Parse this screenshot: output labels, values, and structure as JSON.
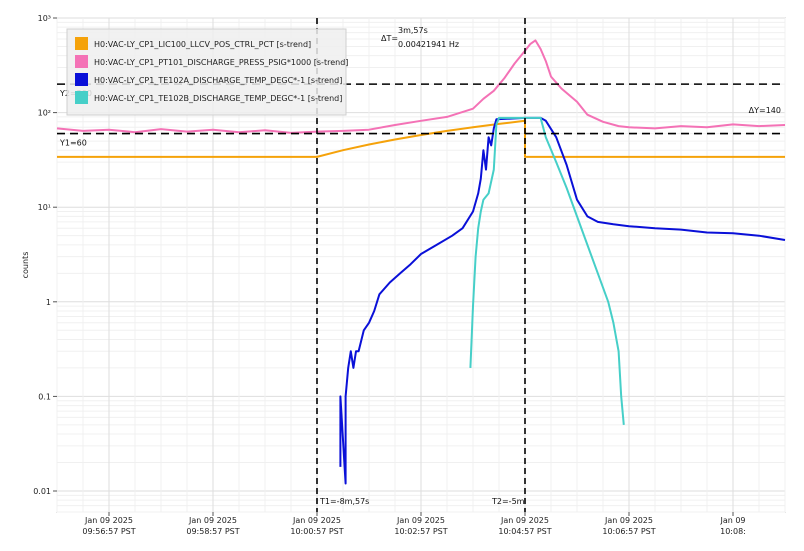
{
  "chart_data": {
    "type": "line",
    "ylabel": "counts",
    "yscale": "log",
    "ylim": [
      0.006,
      1000
    ],
    "xlim_minutes": [
      -13.0,
      1.0
    ],
    "x_ticks": [
      {
        "m": -12,
        "date": "Jan 09 2025",
        "time": "09:56:57 PST"
      },
      {
        "m": -10,
        "date": "Jan 09 2025",
        "time": "09:58:57 PST"
      },
      {
        "m": -8,
        "date": "Jan 09 2025",
        "time": "10:00:57 PST"
      },
      {
        "m": -6,
        "date": "Jan 09 2025",
        "time": "10:02:57 PST"
      },
      {
        "m": -4,
        "date": "Jan 09 2025",
        "time": "10:04:57 PST"
      },
      {
        "m": -2,
        "date": "Jan 09 2025",
        "time": "10:06:57 PST"
      },
      {
        "m": 0,
        "date": "Jan 09",
        "time": "10:08:"
      }
    ],
    "y_ticks": [
      {
        "v": 0.01,
        "label": "0.01"
      },
      {
        "v": 0.1,
        "label": "0.1"
      },
      {
        "v": 1,
        "label": "1"
      },
      {
        "v": 10,
        "label": "10¹"
      },
      {
        "v": 100,
        "label": "10²"
      },
      {
        "v": 1000,
        "label": "10³"
      }
    ],
    "legend_position": "top-left",
    "series": [
      {
        "name": "H0:VAC-LY_CP1_LIC100_LLCV_POS_CTRL_PCT [s-trend]",
        "color": "#f5a20a",
        "points": [
          [
            -13,
            34
          ],
          [
            -8.0,
            34
          ],
          [
            -7.5,
            40
          ],
          [
            -7,
            46
          ],
          [
            -6.5,
            52
          ],
          [
            -6,
            58
          ],
          [
            -5.5,
            64
          ],
          [
            -5,
            70
          ],
          [
            -4.5,
            76
          ],
          [
            -4,
            82
          ],
          [
            -4.0,
            34
          ],
          [
            -3,
            34
          ],
          [
            -2,
            34
          ],
          [
            -1,
            34
          ],
          [
            0,
            34
          ],
          [
            1,
            34
          ]
        ]
      },
      {
        "name": "H0:VAC-LY_CP1_PT101_DISCHARGE_PRESS_PSIG*1000 [s-trend]",
        "color": "#f472b6",
        "points": [
          [
            -13,
            68
          ],
          [
            -12.5,
            64
          ],
          [
            -12,
            66
          ],
          [
            -11.5,
            62
          ],
          [
            -11,
            67
          ],
          [
            -10.5,
            63
          ],
          [
            -10,
            66
          ],
          [
            -9.5,
            62
          ],
          [
            -9,
            65
          ],
          [
            -8.5,
            61
          ],
          [
            -8,
            63
          ],
          [
            -7.5,
            64
          ],
          [
            -7,
            66
          ],
          [
            -6.5,
            74
          ],
          [
            -6,
            82
          ],
          [
            -5.5,
            90
          ],
          [
            -5,
            110
          ],
          [
            -4.8,
            140
          ],
          [
            -4.6,
            170
          ],
          [
            -4.4,
            230
          ],
          [
            -4.2,
            330
          ],
          [
            -4.0,
            450
          ],
          [
            -3.9,
            530
          ],
          [
            -3.8,
            580
          ],
          [
            -3.7,
            470
          ],
          [
            -3.6,
            350
          ],
          [
            -3.5,
            240
          ],
          [
            -3.3,
            180
          ],
          [
            -3.0,
            130
          ],
          [
            -2.8,
            95
          ],
          [
            -2.5,
            80
          ],
          [
            -2.2,
            72
          ],
          [
            -2,
            70
          ],
          [
            -1.5,
            68
          ],
          [
            -1,
            72
          ],
          [
            -0.5,
            70
          ],
          [
            0,
            75
          ],
          [
            0.5,
            72
          ],
          [
            1,
            74
          ]
        ]
      },
      {
        "name": "H0:VAC-LY_CP1_TE102A_DISCHARGE_TEMP_DEGC*-1 [s-trend]",
        "color": "#0a10d8",
        "points": [
          [
            -7.55,
            0.018
          ],
          [
            -7.55,
            0.1
          ],
          [
            -7.45,
            0.012
          ],
          [
            -7.45,
            0.1
          ],
          [
            -7.4,
            0.2
          ],
          [
            -7.35,
            0.3
          ],
          [
            -7.3,
            0.2
          ],
          [
            -7.25,
            0.3
          ],
          [
            -7.2,
            0.3
          ],
          [
            -7.1,
            0.5
          ],
          [
            -7.0,
            0.6
          ],
          [
            -6.9,
            0.8
          ],
          [
            -6.8,
            1.2
          ],
          [
            -6.6,
            1.6
          ],
          [
            -6.4,
            2.0
          ],
          [
            -6.2,
            2.5
          ],
          [
            -6.0,
            3.2
          ],
          [
            -5.7,
            4.0
          ],
          [
            -5.4,
            5.0
          ],
          [
            -5.2,
            6.0
          ],
          [
            -5.0,
            9.0
          ],
          [
            -4.9,
            14
          ],
          [
            -4.85,
            20
          ],
          [
            -4.8,
            40
          ],
          [
            -4.75,
            25
          ],
          [
            -4.7,
            55
          ],
          [
            -4.65,
            45
          ],
          [
            -4.6,
            68
          ],
          [
            -4.55,
            85
          ],
          [
            -4.0,
            88
          ],
          [
            -3.7,
            88
          ],
          [
            -3.6,
            82
          ],
          [
            -3.4,
            55
          ],
          [
            -3.2,
            28
          ],
          [
            -3.0,
            12
          ],
          [
            -2.8,
            8
          ],
          [
            -2.6,
            7
          ],
          [
            -2.3,
            6.6
          ],
          [
            -2,
            6.3
          ],
          [
            -1.5,
            6.0
          ],
          [
            -1,
            5.8
          ],
          [
            -0.5,
            5.4
          ],
          [
            0,
            5.3
          ],
          [
            0.5,
            5.0
          ],
          [
            1,
            4.5
          ]
        ]
      },
      {
        "name": "H0:VAC-LY_CP1_TE102B_DISCHARGE_TEMP_DEGC*-1 [s-trend]",
        "color": "#46cfc8",
        "points": [
          [
            -5.05,
            0.2
          ],
          [
            -5.0,
            0.9
          ],
          [
            -4.95,
            3.0
          ],
          [
            -4.9,
            6.0
          ],
          [
            -4.85,
            9.0
          ],
          [
            -4.8,
            12
          ],
          [
            -4.7,
            14
          ],
          [
            -4.6,
            25
          ],
          [
            -4.55,
            75
          ],
          [
            -4.5,
            88
          ],
          [
            -4.0,
            88
          ],
          [
            -3.7,
            88
          ],
          [
            -3.6,
            55
          ],
          [
            -3.4,
            30
          ],
          [
            -3.2,
            16
          ],
          [
            -3.0,
            8
          ],
          [
            -2.8,
            4
          ],
          [
            -2.6,
            2.0
          ],
          [
            -2.4,
            1.0
          ],
          [
            -2.3,
            0.6
          ],
          [
            -2.2,
            0.3
          ],
          [
            -2.15,
            0.1
          ],
          [
            -2.1,
            0.05
          ]
        ]
      }
    ],
    "cursors": {
      "t1_label": "T1=-8m,57s",
      "t2_label": "T2=-5m",
      "y1_label": "Y1=60",
      "y2_label": "Y2=200",
      "dt_symbol": "ΔT=",
      "dt_value": "3m,57s",
      "dt_freq": "0.00421941 Hz",
      "dy_label": "ΔY=140",
      "t1_m": -8.0,
      "t2_m": -4.0,
      "y1_v": 60,
      "y2_v": 200
    }
  }
}
